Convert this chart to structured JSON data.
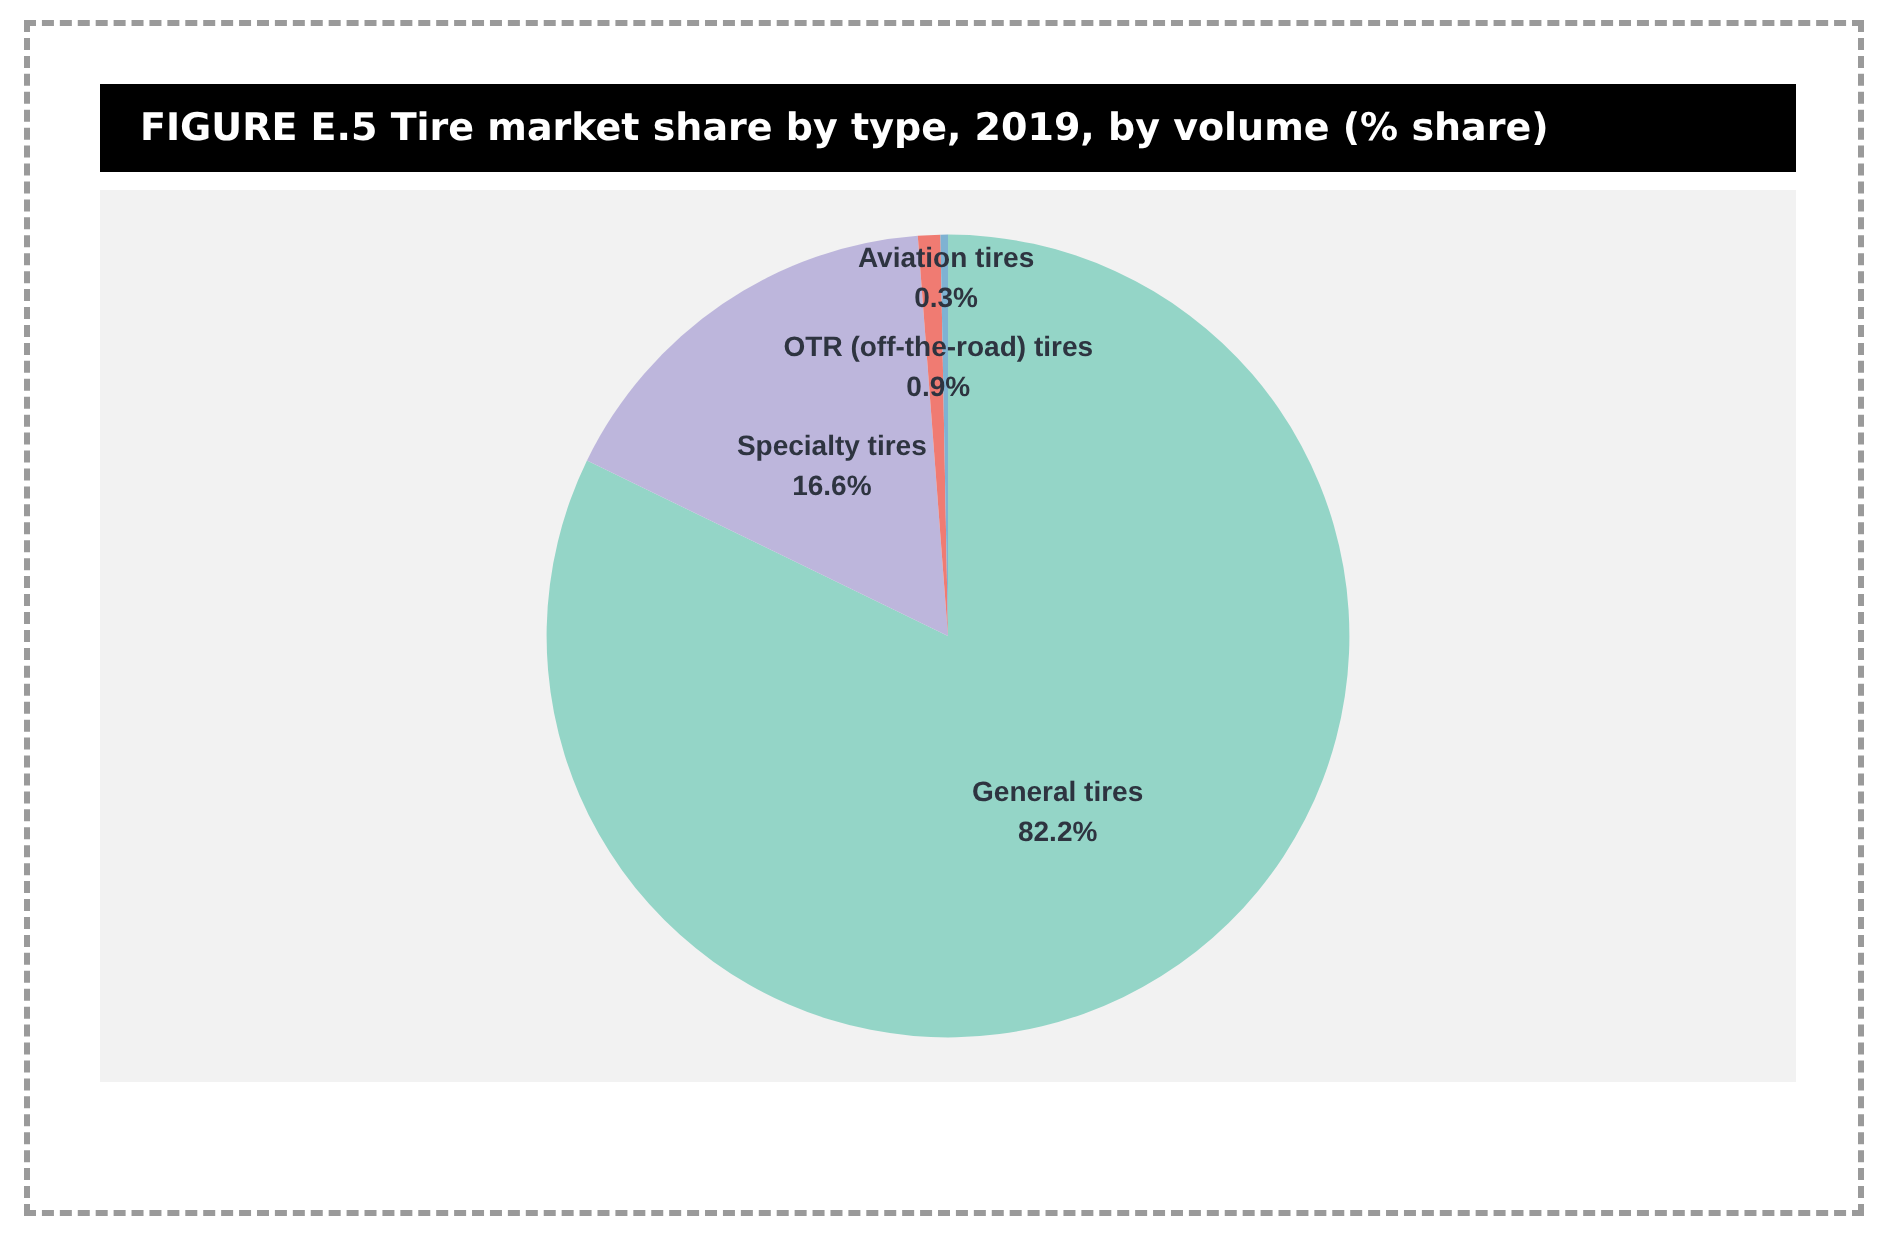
{
  "chart_data": {
    "type": "pie",
    "title": "FIGURE E.5 Tire market share by type, 2019, by volume (% share)",
    "categories": [
      "General tires",
      "Specialty tires",
      "OTR (off-the-road) tires",
      "Aviation tires"
    ],
    "values": [
      82.2,
      16.6,
      0.9,
      0.3
    ],
    "colors": [
      "#94d5c7",
      "#bdb6dc",
      "#f07b72",
      "#7fb2d2"
    ],
    "value_labels": [
      "82.2%",
      "16.6%",
      "0.9%",
      "0.3%"
    ],
    "legend": false
  }
}
